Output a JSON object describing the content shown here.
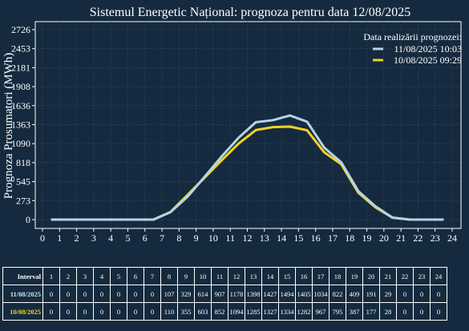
{
  "chart_data": {
    "type": "line",
    "title": "Sistemul Energetic Național: prognoza pentru data 12/08/2025",
    "ylabel": "Prognoza Prosumatori (MWh)",
    "xlabel": "",
    "x_ticks": [
      0,
      1,
      2,
      3,
      4,
      5,
      6,
      7,
      8,
      9,
      10,
      11,
      12,
      13,
      14,
      15,
      16,
      17,
      18,
      19,
      20,
      21,
      22,
      23,
      24
    ],
    "y_ticks": [
      0,
      273,
      545,
      818,
      1090,
      1363,
      1636,
      1908,
      2181,
      2453,
      2726
    ],
    "xlim": [
      0,
      24
    ],
    "ylim": [
      -100,
      2850
    ],
    "grid": true,
    "legend_title": "Data realizării prognozei:",
    "legend_position": "top-right",
    "x": [
      0.5,
      1.5,
      2.5,
      3.5,
      4.5,
      5.5,
      6.5,
      7.5,
      8.5,
      9.5,
      10.5,
      11.5,
      12.5,
      13.5,
      14.5,
      15.5,
      16.5,
      17.5,
      18.5,
      19.5,
      20.5,
      21.5,
      22.5,
      23.5
    ],
    "series": [
      {
        "name": "11/08/2025 10:03",
        "color": "#b7d3e6",
        "values": [
          0,
          0,
          0,
          0,
          0,
          0,
          0,
          107,
          329,
          614,
          907,
          1178,
          1398,
          1427,
          1494,
          1405,
          1034,
          822,
          409,
          191,
          29,
          0,
          0,
          0
        ]
      },
      {
        "name": "10/08/2025 09:29",
        "color": "#f2cf2a",
        "values": [
          0,
          0,
          0,
          0,
          0,
          0,
          0,
          110,
          355,
          603,
          852,
          1094,
          1285,
          1327,
          1334,
          1282,
          967,
          795,
          387,
          177,
          28,
          0,
          0,
          0
        ]
      }
    ]
  },
  "table": {
    "header_label": "Interval",
    "intervals": [
      "1",
      "2",
      "3",
      "4",
      "5",
      "6",
      "7",
      "8",
      "9",
      "10",
      "11",
      "12",
      "13",
      "14",
      "15",
      "16",
      "17",
      "18",
      "19",
      "20",
      "21",
      "22",
      "23",
      "24"
    ],
    "rows": [
      {
        "label": "11/08/2025",
        "values": [
          "0",
          "0",
          "0",
          "0",
          "0",
          "0",
          "0",
          "107",
          "329",
          "614",
          "907",
          "1178",
          "1398",
          "1427",
          "1494",
          "1405",
          "1034",
          "822",
          "409",
          "191",
          "29",
          "0",
          "0",
          "0"
        ]
      },
      {
        "label": "10/08/2025",
        "values": [
          "0",
          "0",
          "0",
          "0",
          "0",
          "0",
          "0",
          "110",
          "355",
          "603",
          "852",
          "1094",
          "1285",
          "1327",
          "1334",
          "1282",
          "967",
          "795",
          "387",
          "177",
          "28",
          "0",
          "0",
          "0"
        ]
      }
    ]
  }
}
